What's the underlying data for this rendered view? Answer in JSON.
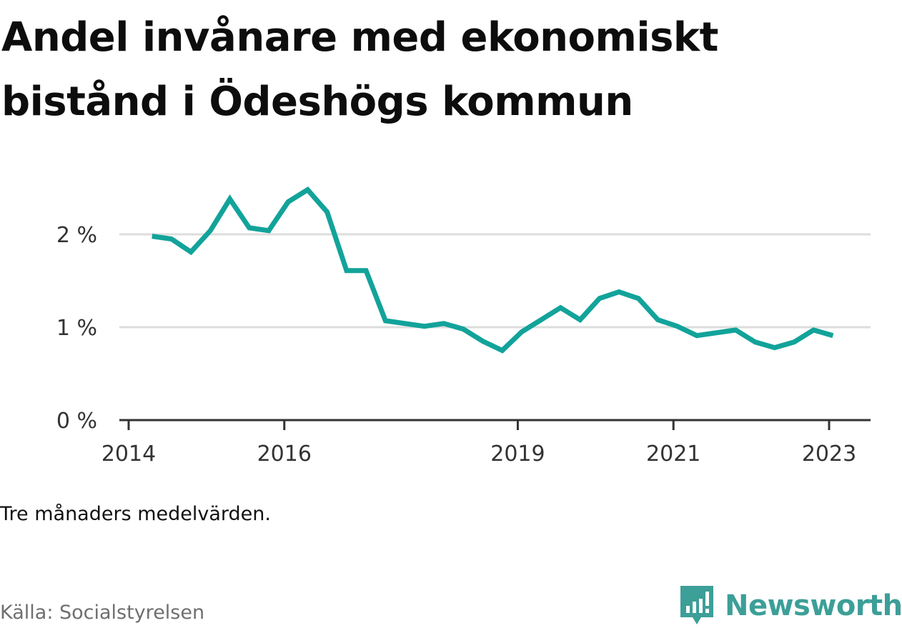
{
  "title": "Andel invånare med ekonomiskt bistånd i Ödeshögs kommun",
  "note": "Tre månaders medelvärden.",
  "source": "Källa: Socialstyrelsen",
  "brand": "Newsworthy",
  "colors": {
    "line": "#12a39a",
    "grid": "#dddddd",
    "axis": "#333333",
    "brand": "#3c9f98"
  },
  "chart_data": {
    "type": "line",
    "title": "Andel invånare med ekonomiskt bistånd i Ödeshögs kommun",
    "xlabel": "",
    "ylabel": "",
    "xlim": [
      2013.9,
      2023.5
    ],
    "ylim": [
      0,
      2.5
    ],
    "grid": true,
    "legend": "none",
    "y_ticks": [
      {
        "value": 0,
        "label": "0 %"
      },
      {
        "value": 1,
        "label": "1 %"
      },
      {
        "value": 2,
        "label": "2 %"
      }
    ],
    "x_ticks": [
      {
        "value": 2014,
        "label": "2014"
      },
      {
        "value": 2016,
        "label": "2016"
      },
      {
        "value": 2019,
        "label": "2019"
      },
      {
        "value": 2021,
        "label": "2021"
      },
      {
        "value": 2023,
        "label": "2023"
      }
    ],
    "series": [
      {
        "x": [
          2014.3,
          2014.55,
          2014.8,
          2015.05,
          2015.3,
          2015.55,
          2015.8,
          2016.05,
          2016.3,
          2016.55,
          2016.8,
          2017.05,
          2017.3,
          2017.55,
          2017.8,
          2018.05,
          2018.3,
          2018.55,
          2018.8,
          2019.05,
          2019.3,
          2019.55,
          2019.8,
          2020.05,
          2020.3,
          2020.55,
          2020.8,
          2021.05,
          2021.3,
          2021.55,
          2021.8,
          2022.05,
          2022.3,
          2022.55,
          2022.8,
          2023.05
        ],
        "values": [
          1.98,
          1.95,
          1.81,
          2.04,
          2.38,
          2.07,
          2.04,
          2.35,
          2.48,
          2.24,
          1.61,
          1.61,
          1.07,
          1.04,
          1.01,
          1.04,
          0.98,
          0.85,
          0.75,
          0.95,
          1.08,
          1.21,
          1.08,
          1.31,
          1.38,
          1.31,
          1.08,
          1.01,
          0.91,
          0.94,
          0.97,
          0.84,
          0.78,
          0.84,
          0.97,
          0.91
        ]
      }
    ]
  }
}
